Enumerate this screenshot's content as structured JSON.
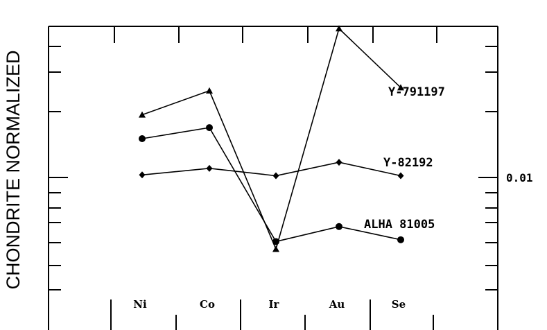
{
  "chart_data": {
    "type": "line",
    "ylabel": "CHONDRITE NORMALIZED",
    "yscale": "log",
    "right_tick_label": "0.01",
    "categories": [
      "Ni",
      "Co",
      "Ir",
      "Au",
      "Se"
    ],
    "series": [
      {
        "name": "Y-791197",
        "marker": "triangle",
        "values": [
          0.0205,
          0.027,
          0.0044,
          0.055,
          0.028
        ]
      },
      {
        "name": "Y-82192",
        "marker": "diamond",
        "values": [
          0.0103,
          0.0111,
          0.0102,
          0.0119,
          0.0102
        ]
      },
      {
        "name": "ALHA 81005",
        "marker": "circle",
        "values": [
          0.0156,
          0.0177,
          0.0048,
          0.0057,
          0.0049
        ]
      }
    ]
  }
}
